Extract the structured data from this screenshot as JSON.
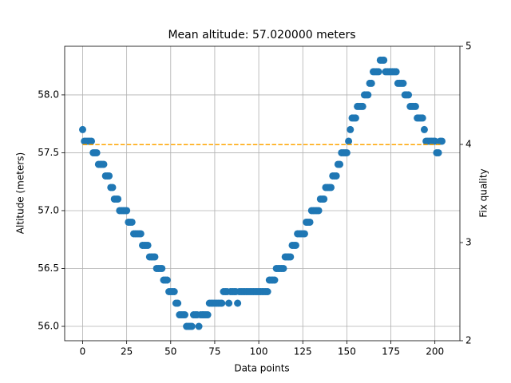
{
  "chart_data": {
    "type": "scatter",
    "title": "Mean altitude: 57.020000 meters",
    "xlabel": "Data points",
    "ylabel": "Altitude (meters)",
    "y2label": "Fix quality",
    "xlim": [
      -10.2,
      214.2
    ],
    "ylim": [
      55.876,
      58.42
    ],
    "y2lim": [
      2,
      5
    ],
    "xticks": [
      0,
      25,
      50,
      75,
      100,
      125,
      150,
      175,
      200
    ],
    "yticks": [
      {
        "value": 56,
        "label": "56.0"
      },
      56.5,
      {
        "value": 57,
        "label": "57.0"
      },
      57.5,
      {
        "value": 58,
        "label": "58.0"
      }
    ],
    "y2ticks": [
      2,
      3,
      4,
      5
    ],
    "grid": true,
    "series": [
      {
        "type": "scatter",
        "color": "#1f77b4",
        "x": [
          0,
          1,
          2,
          3,
          4,
          5,
          6,
          7,
          8,
          9,
          10,
          11,
          12,
          13,
          14,
          15,
          16,
          17,
          18,
          19,
          20,
          21,
          22,
          23,
          24,
          25,
          26,
          27,
          28,
          29,
          30,
          31,
          32,
          33,
          34,
          35,
          36,
          37,
          38,
          39,
          40,
          41,
          42,
          43,
          44,
          45,
          46,
          47,
          48,
          49,
          50,
          51,
          52,
          53,
          54,
          55,
          56,
          57,
          58,
          59,
          60,
          61,
          62,
          63,
          64,
          65,
          66,
          67,
          68,
          69,
          70,
          71,
          72,
          73,
          74,
          75,
          76,
          77,
          78,
          79,
          80,
          81,
          82,
          83,
          84,
          85,
          86,
          87,
          88,
          89,
          90,
          91,
          92,
          93,
          94,
          95,
          96,
          97,
          98,
          99,
          100,
          101,
          102,
          103,
          104,
          105,
          106,
          107,
          108,
          109,
          110,
          111,
          112,
          113,
          114,
          115,
          116,
          117,
          118,
          119,
          120,
          121,
          122,
          123,
          124,
          125,
          126,
          127,
          128,
          129,
          130,
          131,
          132,
          133,
          134,
          135,
          136,
          137,
          138,
          139,
          140,
          141,
          142,
          143,
          144,
          145,
          146,
          147,
          148,
          149,
          150,
          151,
          152,
          153,
          154,
          155,
          156,
          157,
          158,
          159,
          160,
          161,
          162,
          163,
          164,
          165,
          166,
          167,
          168,
          169,
          170,
          171,
          172,
          173,
          174,
          175,
          176,
          177,
          178,
          179,
          180,
          181,
          182,
          183,
          184,
          185,
          186,
          187,
          188,
          189,
          190,
          191,
          192,
          193,
          194,
          195,
          196,
          197,
          198,
          199,
          200,
          201,
          202,
          203,
          204
        ],
        "values": [
          57.7,
          57.6,
          57.6,
          57.6,
          57.6,
          57.6,
          57.5,
          57.5,
          57.5,
          57.4,
          57.4,
          57.4,
          57.4,
          57.3,
          57.3,
          57.3,
          57.2,
          57.2,
          57.1,
          57.1,
          57.1,
          57.0,
          57.0,
          57.0,
          57.0,
          57.0,
          56.9,
          56.9,
          56.9,
          56.8,
          56.8,
          56.8,
          56.8,
          56.8,
          56.7,
          56.7,
          56.7,
          56.7,
          56.6,
          56.6,
          56.6,
          56.6,
          56.5,
          56.5,
          56.5,
          56.5,
          56.4,
          56.4,
          56.4,
          56.3,
          56.3,
          56.3,
          56.3,
          56.2,
          56.2,
          56.1,
          56.1,
          56.1,
          56.1,
          56.0,
          56.0,
          56.0,
          56.0,
          56.1,
          56.1,
          56.1,
          56.0,
          56.1,
          56.1,
          56.1,
          56.1,
          56.1,
          56.2,
          56.2,
          56.2,
          56.2,
          56.2,
          56.2,
          56.2,
          56.2,
          56.3,
          56.3,
          56.3,
          56.2,
          56.3,
          56.3,
          56.3,
          56.3,
          56.2,
          56.3,
          56.3,
          56.3,
          56.3,
          56.3,
          56.3,
          56.3,
          56.3,
          56.3,
          56.3,
          56.3,
          56.3,
          56.3,
          56.3,
          56.3,
          56.3,
          56.3,
          56.4,
          56.4,
          56.4,
          56.4,
          56.5,
          56.5,
          56.5,
          56.5,
          56.5,
          56.6,
          56.6,
          56.6,
          56.6,
          56.7,
          56.7,
          56.7,
          56.8,
          56.8,
          56.8,
          56.8,
          56.8,
          56.9,
          56.9,
          56.9,
          57.0,
          57.0,
          57.0,
          57.0,
          57.0,
          57.1,
          57.1,
          57.1,
          57.2,
          57.2,
          57.2,
          57.2,
          57.3,
          57.3,
          57.3,
          57.4,
          57.4,
          57.5,
          57.5,
          57.5,
          57.5,
          57.6,
          57.7,
          57.8,
          57.8,
          57.8,
          57.9,
          57.9,
          57.9,
          57.9,
          58.0,
          58.0,
          58.0,
          58.1,
          58.1,
          58.2,
          58.2,
          58.2,
          58.2,
          58.3,
          58.3,
          58.3,
          58.2,
          58.2,
          58.2,
          58.2,
          58.2,
          58.2,
          58.2,
          58.1,
          58.1,
          58.1,
          58.1,
          58.0,
          58.0,
          58.0,
          57.9,
          57.9,
          57.9,
          57.9,
          57.8,
          57.8,
          57.8,
          57.8,
          57.7,
          57.6,
          57.6,
          57.6,
          57.6,
          57.6,
          57.6,
          57.5,
          57.5,
          57.6,
          57.6
        ]
      },
      {
        "type": "line",
        "color": "#ffa500",
        "style": "dashed",
        "x": [
          0,
          204
        ],
        "values": [
          57.57,
          57.57
        ]
      }
    ]
  }
}
